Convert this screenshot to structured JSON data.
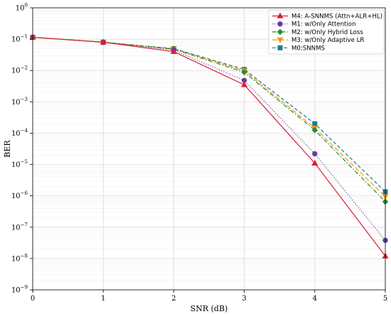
{
  "chart_data": {
    "type": "line",
    "title": "",
    "xlabel": "SNR (dB)",
    "ylabel": "BER",
    "x": [
      0,
      1,
      2,
      3,
      4,
      5
    ],
    "xlim": [
      0,
      5
    ],
    "ylim": [
      1e-09,
      1
    ],
    "y_scale": "log",
    "x_ticks": [
      "0",
      "1",
      "2",
      "3",
      "4",
      "5"
    ],
    "y_ticks": [
      {
        "base": "10",
        "exp": "0"
      },
      {
        "base": "10",
        "exp": "−1"
      },
      {
        "base": "10",
        "exp": "−2"
      },
      {
        "base": "10",
        "exp": "−3"
      },
      {
        "base": "10",
        "exp": "−4"
      },
      {
        "base": "10",
        "exp": "−5"
      },
      {
        "base": "10",
        "exp": "−6"
      },
      {
        "base": "10",
        "exp": "−7"
      },
      {
        "base": "10",
        "exp": "−8"
      },
      {
        "base": "10",
        "exp": "−9"
      }
    ],
    "grid": true,
    "legend_position": "top-right",
    "series": [
      {
        "name": "M4: A-SNNMS (Attn+ALR+HL)",
        "color": "#d62035",
        "dash": "solid",
        "marker": "triangle-up",
        "values": [
          0.115,
          0.08,
          0.04,
          0.0035,
          1.1e-05,
          1.2e-08
        ]
      },
      {
        "name": "M1: w/Only Attention",
        "color": "#6a3d9a",
        "dash": "dotted",
        "marker": "circle",
        "values": [
          0.115,
          0.08,
          0.045,
          0.0048,
          2.2e-05,
          3.8e-08
        ]
      },
      {
        "name": "M2: w/Only Hybrid Loss",
        "color": "#2e8b2e",
        "dash": "dashdot",
        "marker": "diamond",
        "values": [
          0.115,
          0.08,
          0.048,
          0.0088,
          0.000125,
          6.5e-07
        ]
      },
      {
        "name": "M3: w/Only Adaptive LR",
        "color": "#f39c12",
        "dash": "longdash",
        "marker": "triangle-down",
        "values": [
          0.115,
          0.08,
          0.049,
          0.0098,
          0.000145,
          9.5e-07
        ]
      },
      {
        "name": "M0:SNNMS",
        "color": "#1b7a94",
        "dash": "dashed",
        "marker": "square",
        "values": [
          0.115,
          0.08,
          0.05,
          0.0108,
          0.0002,
          1.35e-06
        ]
      }
    ]
  }
}
